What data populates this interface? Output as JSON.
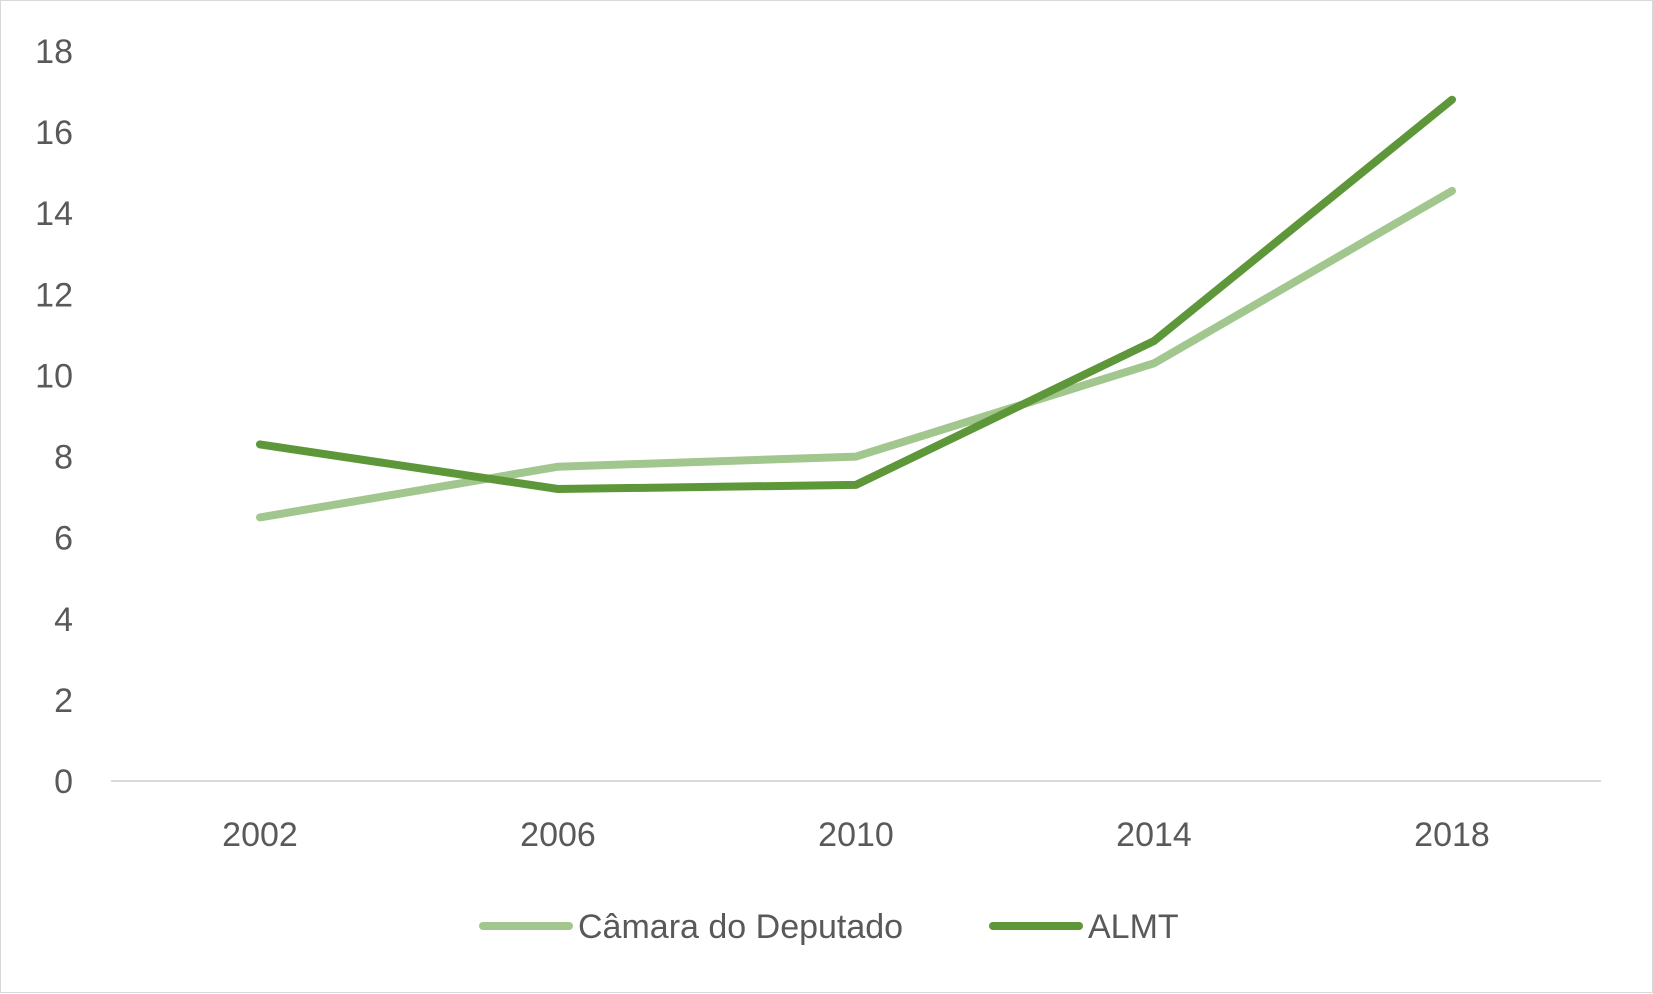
{
  "chart_data": {
    "type": "line",
    "title": "",
    "xlabel": "",
    "ylabel": "",
    "categories": [
      "2002",
      "2006",
      "2010",
      "2014",
      "2018"
    ],
    "ylim": [
      0,
      18
    ],
    "yticks": [
      0,
      2,
      4,
      6,
      8,
      10,
      12,
      14,
      16,
      18
    ],
    "grid": false,
    "legend_position": "bottom",
    "series": [
      {
        "name": "Câmara do Deputado",
        "color": "#a1c78e",
        "values": [
          6.5,
          7.75,
          8.0,
          10.3,
          14.55
        ]
      },
      {
        "name": "ALMT",
        "color": "#5e973a",
        "values": [
          8.3,
          7.2,
          7.3,
          10.85,
          16.8
        ]
      }
    ]
  }
}
